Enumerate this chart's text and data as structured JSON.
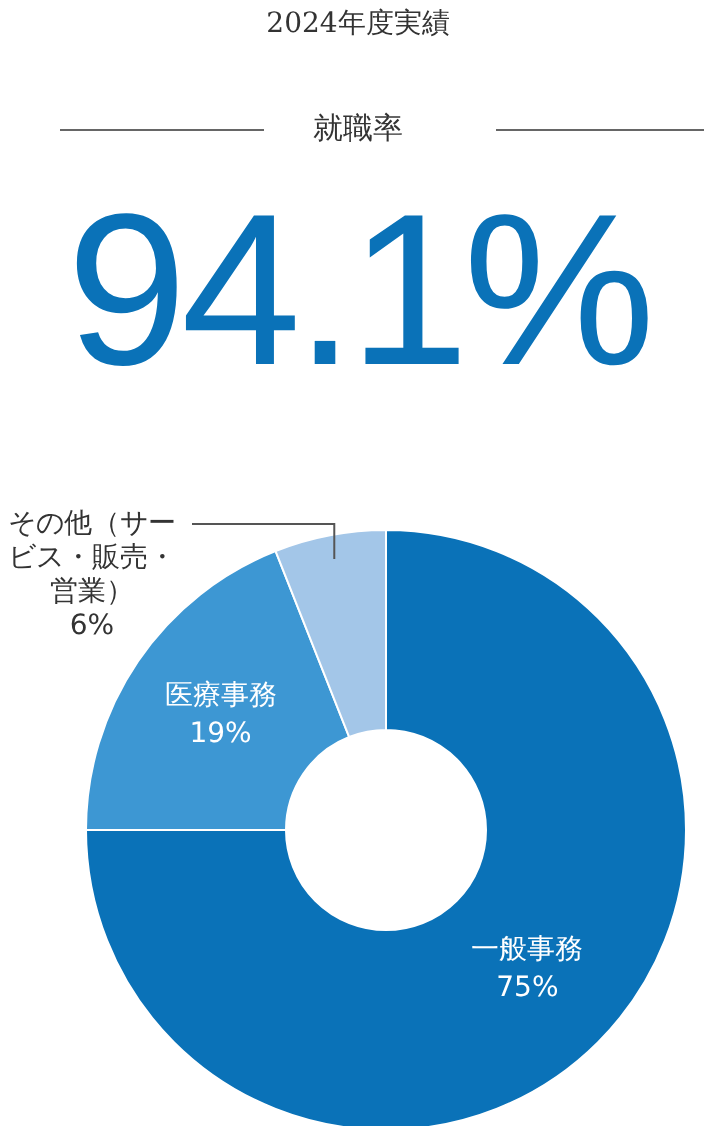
{
  "chart_data": {
    "type": "donut",
    "title": "2024年度実績",
    "subtitle": "就職率",
    "annotations": [
      "94.1%"
    ],
    "categories": [
      "一般事務",
      "医療事務",
      "その他（サービス・販売・営業）"
    ],
    "values": [
      75,
      19,
      6
    ],
    "colors": [
      "#0a72b8",
      "#3d97d3",
      "#a3c6e8"
    ],
    "value_labels": [
      "75%",
      "19%",
      "6%"
    ]
  }
}
